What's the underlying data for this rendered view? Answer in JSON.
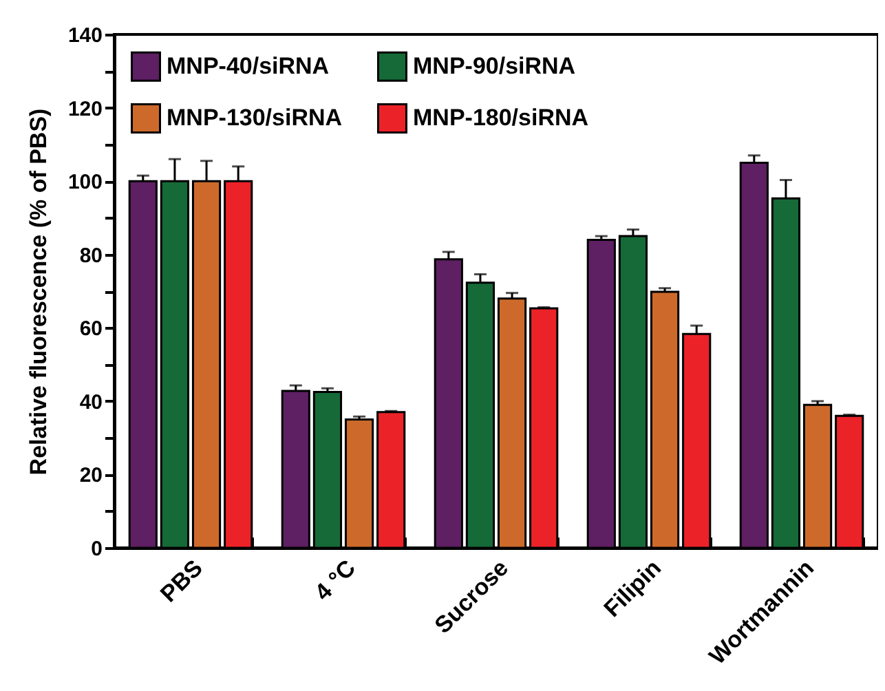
{
  "chart_data": {
    "type": "bar",
    "ylabel": "Relative fluorescence (% of PBS)",
    "categories": [
      "PBS",
      "4 °C",
      "Sucrose",
      "Filipin",
      "Wortmannin"
    ],
    "series": [
      {
        "name": "MNP-40/siRNA",
        "color": "#5f1f63",
        "values": [
          100,
          42.8,
          78.7,
          84,
          105
        ],
        "errors": [
          1.5,
          1.5,
          2,
          1,
          2
        ]
      },
      {
        "name": "MNP-90/siRNA",
        "color": "#156a38",
        "values": [
          100,
          42.5,
          72.3,
          85,
          95.3
        ],
        "errors": [
          6,
          1,
          2.3,
          1.8,
          5
        ]
      },
      {
        "name": "MNP-130/siRNA",
        "color": "#cd6a2b",
        "values": [
          100,
          35,
          68,
          69.8,
          39
        ],
        "errors": [
          5.5,
          0.8,
          1.5,
          1,
          1
        ]
      },
      {
        "name": "MNP-180/siRNA",
        "color": "#ec2229",
        "values": [
          100,
          37,
          65.3,
          58.3,
          36
        ],
        "errors": [
          4,
          0.3,
          0.3,
          2.3,
          0.3
        ]
      }
    ],
    "ylim": [
      0,
      140
    ],
    "yticks": [
      0,
      {
        "value": 10,
        "label": null
      },
      20,
      {
        "value": 30,
        "label": null
      },
      40,
      {
        "value": 50,
        "label": null
      },
      60,
      {
        "value": 70,
        "label": null
      },
      80,
      {
        "value": 90,
        "label": null
      },
      100,
      {
        "value": 110,
        "label": null
      },
      120,
      {
        "value": 130,
        "label": null
      },
      140
    ],
    "grid": false,
    "legend": "top left"
  }
}
